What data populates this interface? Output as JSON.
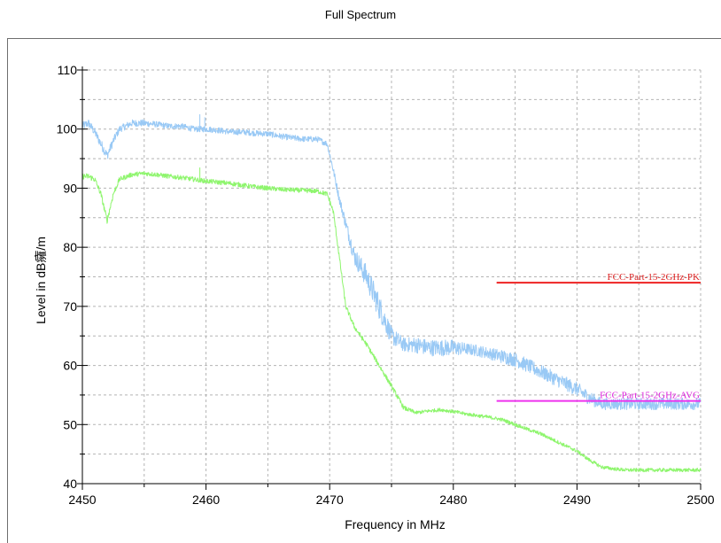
{
  "chart_data": {
    "type": "line",
    "title": "Full Spectrum",
    "xlabel": "Frequency in MHz",
    "ylabel": "Level in dB癕/m",
    "xlim": [
      2450,
      2500
    ],
    "ylim": [
      40,
      110
    ],
    "xticks": [
      2450,
      2460,
      2470,
      2480,
      2490,
      2500
    ],
    "yticks": [
      40,
      50,
      60,
      70,
      80,
      90,
      100,
      110
    ],
    "grid": true,
    "series": [
      {
        "color": "#99c9f5",
        "x": [
          2450,
          2450.5,
          2451,
          2451.5,
          2452,
          2452.5,
          2453,
          2454,
          2455,
          2456,
          2457,
          2458,
          2459,
          2460,
          2461,
          2462,
          2463,
          2464,
          2465,
          2466,
          2467,
          2468,
          2469,
          2469.8,
          2470.3,
          2470.8,
          2471.3,
          2472,
          2473,
          2474,
          2475,
          2476,
          2477,
          2478,
          2479,
          2480,
          2481,
          2482,
          2483,
          2484,
          2485,
          2486,
          2487,
          2488,
          2489,
          2490,
          2491,
          2492,
          2493,
          2494,
          2495,
          2496,
          2497,
          2498,
          2499,
          2500
        ],
        "y": [
          100.5,
          101.0,
          99.5,
          97.5,
          95.5,
          98.0,
          100.0,
          101.0,
          101.0,
          100.8,
          100.5,
          100.5,
          100.0,
          100.0,
          99.8,
          99.5,
          99.5,
          99.3,
          99.2,
          98.8,
          98.5,
          98.3,
          98.3,
          97.5,
          93.0,
          88.0,
          84.0,
          78.5,
          75.0,
          70.0,
          65.0,
          63.5,
          63.5,
          63.0,
          63.0,
          63.0,
          62.8,
          62.5,
          62.0,
          61.5,
          61.0,
          60.0,
          59.0,
          58.0,
          57.0,
          56.0,
          54.5,
          53.5,
          53.5,
          53.5,
          53.5,
          53.5,
          53.5,
          53.5,
          53.5,
          53.5
        ],
        "noise": [
          0.7,
          0.7,
          0.7,
          0.8,
          0.8,
          0.7,
          0.6,
          0.6,
          0.6,
          0.5,
          0.5,
          0.5,
          0.5,
          0.5,
          0.5,
          0.5,
          0.5,
          0.5,
          0.5,
          0.5,
          0.5,
          0.5,
          0.5,
          0.5,
          0.6,
          0.8,
          1.0,
          1.5,
          2.0,
          2.2,
          1.5,
          1.2,
          1.4,
          1.4,
          1.4,
          1.4,
          1.0,
          1.0,
          1.0,
          1.2,
          1.2,
          1.2,
          1.2,
          1.2,
          1.2,
          1.2,
          1.2,
          1.0,
          1.0,
          1.0,
          1.0,
          1.0,
          1.0,
          1.0,
          1.0,
          1.0
        ]
      },
      {
        "color": "#8ef56d",
        "x": [
          2450,
          2450.5,
          2451,
          2451.5,
          2452,
          2452.5,
          2453,
          2454,
          2455,
          2456,
          2457,
          2458,
          2459,
          2460,
          2461,
          2462,
          2463,
          2464,
          2465,
          2466,
          2467,
          2468,
          2469,
          2469.8,
          2470.3,
          2470.8,
          2471.3,
          2472,
          2473,
          2474,
          2475,
          2476,
          2477,
          2478,
          2479,
          2480,
          2481,
          2482,
          2483,
          2484,
          2485,
          2486,
          2487,
          2488,
          2489,
          2490,
          2491,
          2492,
          2493,
          2494,
          2495,
          2496,
          2497,
          2498,
          2499,
          2500
        ],
        "y": [
          92.0,
          92.0,
          91.5,
          89.0,
          84.5,
          89.0,
          91.5,
          92.3,
          92.5,
          92.3,
          92.0,
          91.8,
          91.5,
          91.2,
          91.0,
          90.8,
          90.5,
          90.2,
          90.0,
          89.8,
          89.7,
          89.6,
          89.5,
          89.0,
          86.0,
          78.0,
          70.0,
          66.5,
          63.5,
          60.0,
          56.5,
          52.8,
          52.0,
          52.3,
          52.5,
          52.2,
          51.8,
          51.5,
          51.2,
          50.8,
          50.0,
          49.2,
          48.5,
          47.5,
          46.5,
          45.5,
          44.0,
          42.8,
          42.5,
          42.3,
          42.3,
          42.3,
          42.3,
          42.3,
          42.3,
          42.3
        ],
        "noise": [
          0.5,
          0.5,
          0.5,
          0.5,
          0.5,
          0.5,
          0.4,
          0.4,
          0.4,
          0.4,
          0.4,
          0.4,
          0.4,
          0.4,
          0.4,
          0.4,
          0.4,
          0.4,
          0.4,
          0.4,
          0.4,
          0.4,
          0.4,
          0.4,
          0.4,
          0.4,
          0.4,
          0.4,
          0.4,
          0.4,
          0.4,
          0.4,
          0.3,
          0.3,
          0.3,
          0.3,
          0.3,
          0.3,
          0.3,
          0.3,
          0.3,
          0.3,
          0.3,
          0.3,
          0.3,
          0.3,
          0.3,
          0.3,
          0.3,
          0.3,
          0.3,
          0.3,
          0.3,
          0.3,
          0.3,
          0.3
        ]
      }
    ],
    "spikes": [
      {
        "x": 2459.5,
        "y_low": 99.5,
        "y_high": 102.5,
        "color": "#99c9f5"
      },
      {
        "x": 2459.9,
        "y_low": 99.5,
        "y_high": 102.0,
        "color": "#99c9f5"
      },
      {
        "x": 2459.5,
        "y_low": 91.0,
        "y_high": 93.5,
        "color": "#8ef56d"
      }
    ],
    "limit_lines": [
      {
        "label": "FCC-Part-15-2GHz-PK",
        "x_start": 2483.5,
        "x_end": 2500,
        "y": 74,
        "color": "#ee2222",
        "label_color": "#dd2222"
      },
      {
        "label": "FCC-Part-15-2GHz-AVG",
        "x_start": 2483.5,
        "x_end": 2500,
        "y": 54,
        "color": "#ee33ee",
        "label_color": "#dd22dd"
      }
    ]
  }
}
